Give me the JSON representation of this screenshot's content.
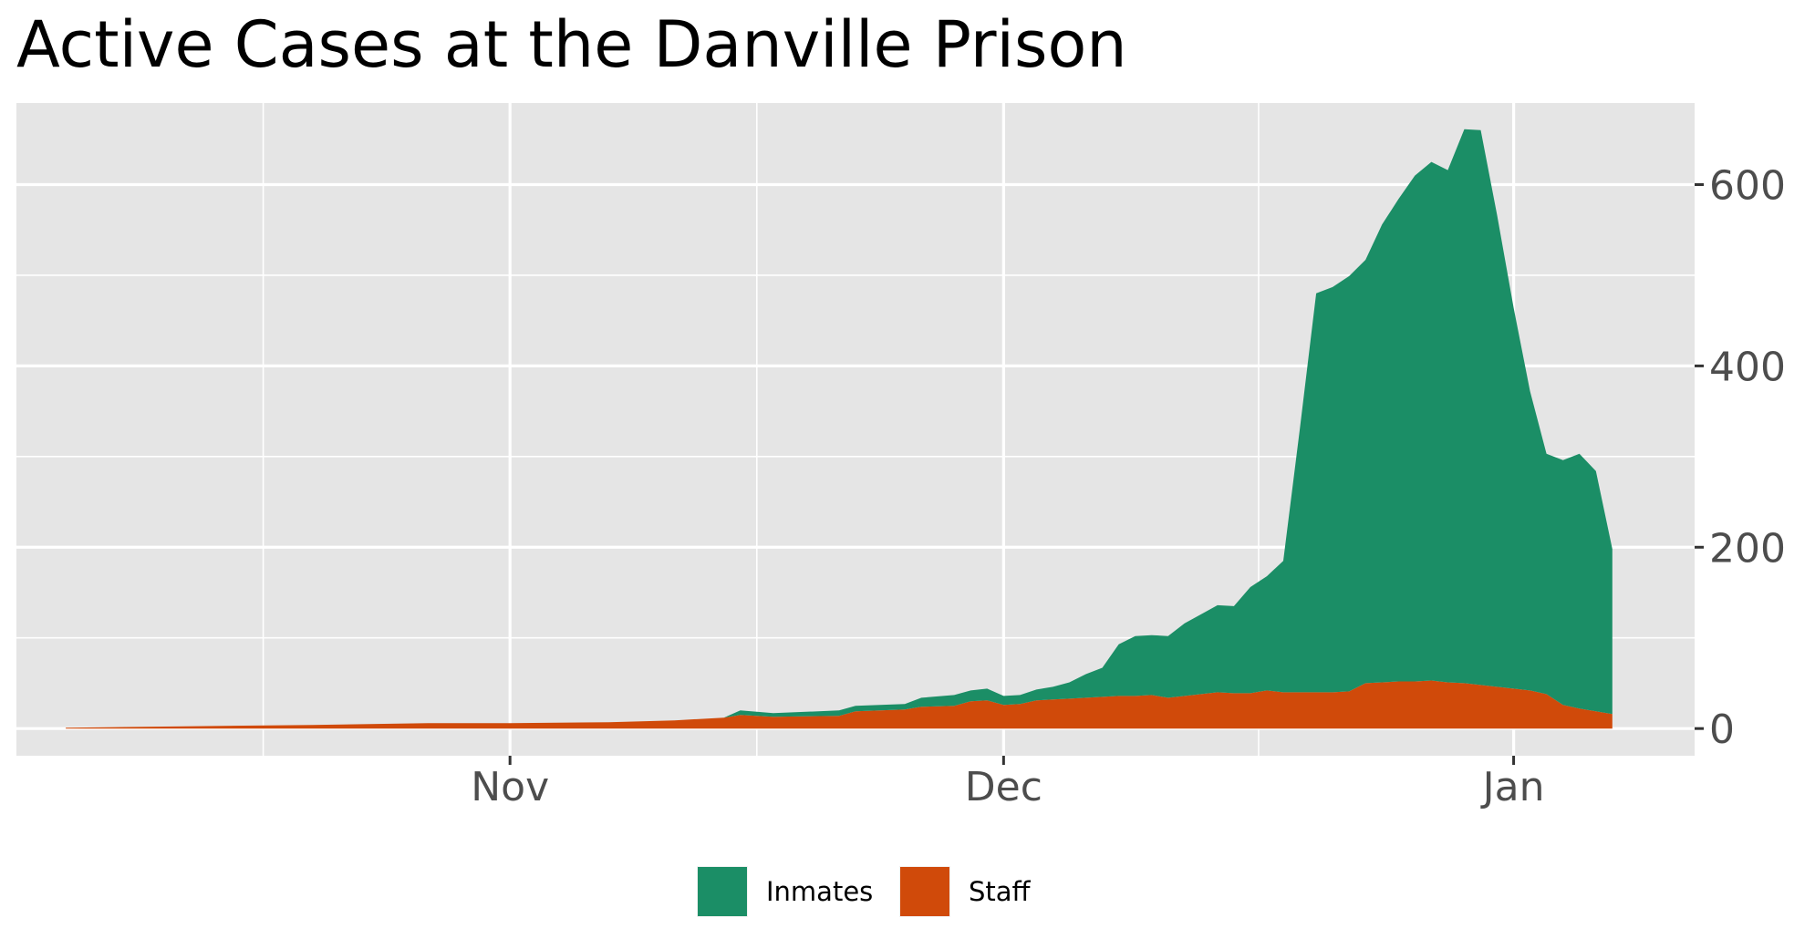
{
  "chart_data": {
    "type": "area",
    "stacked": true,
    "title": "Active Cases at the Danville Prison",
    "xlabel": "",
    "ylabel": "",
    "y_axis_position": "right",
    "x_tick_labels": [
      {
        "date": "2020-11-01",
        "label": "Nov"
      },
      {
        "date": "2020-12-01",
        "label": "Dec"
      },
      {
        "date": "2021-01-01",
        "label": "Jan"
      }
    ],
    "y_ticks": [
      0,
      200,
      400,
      600
    ],
    "ylim": [
      -30,
      690
    ],
    "xlim": [
      "2020-10-02",
      "2021-01-12"
    ],
    "grid": true,
    "legend_position": "bottom",
    "colors": {
      "panel_background": "#e5e5e5",
      "grid": "#ffffff",
      "axis_text": "#4d4d4d",
      "tick_mark": "#333333"
    },
    "series": [
      {
        "name": "Staff",
        "color": "#d04a0a",
        "points": [
          [
            "2020-10-05",
            1
          ],
          [
            "2020-10-20",
            4
          ],
          [
            "2020-10-27",
            6
          ],
          [
            "2020-11-01",
            6
          ],
          [
            "2020-11-07",
            7
          ],
          [
            "2020-11-11",
            9
          ],
          [
            "2020-11-14",
            12
          ],
          [
            "2020-11-15",
            15
          ],
          [
            "2020-11-17",
            13
          ],
          [
            "2020-11-21",
            14
          ],
          [
            "2020-11-22",
            19
          ],
          [
            "2020-11-25",
            21
          ],
          [
            "2020-11-26",
            24
          ],
          [
            "2020-11-28",
            25
          ],
          [
            "2020-11-29",
            30
          ],
          [
            "2020-11-30",
            31
          ],
          [
            "2020-12-01",
            26
          ],
          [
            "2020-12-02",
            27
          ],
          [
            "2020-12-03",
            31
          ],
          [
            "2020-12-04",
            32
          ],
          [
            "2020-12-05",
            33
          ],
          [
            "2020-12-06",
            34
          ],
          [
            "2020-12-07",
            35
          ],
          [
            "2020-12-08",
            36
          ],
          [
            "2020-12-09",
            36
          ],
          [
            "2020-12-10",
            37
          ],
          [
            "2020-12-11",
            34
          ],
          [
            "2020-12-12",
            36
          ],
          [
            "2020-12-13",
            38
          ],
          [
            "2020-12-14",
            40
          ],
          [
            "2020-12-15",
            39
          ],
          [
            "2020-12-16",
            39
          ],
          [
            "2020-12-17",
            42
          ],
          [
            "2020-12-18",
            40
          ],
          [
            "2020-12-19",
            40
          ],
          [
            "2020-12-20",
            40
          ],
          [
            "2020-12-21",
            40
          ],
          [
            "2020-12-22",
            41
          ],
          [
            "2020-12-23",
            50
          ],
          [
            "2020-12-24",
            51
          ],
          [
            "2020-12-25",
            52
          ],
          [
            "2020-12-26",
            52
          ],
          [
            "2020-12-27",
            53
          ],
          [
            "2020-12-28",
            51
          ],
          [
            "2020-12-29",
            50
          ],
          [
            "2020-12-30",
            48
          ],
          [
            "2020-12-31",
            46
          ],
          [
            "2021-01-01",
            44
          ],
          [
            "2021-01-02",
            42
          ],
          [
            "2021-01-03",
            38
          ],
          [
            "2021-01-04",
            26
          ],
          [
            "2021-01-05",
            22
          ],
          [
            "2021-01-06",
            19
          ],
          [
            "2021-01-07",
            16
          ]
        ]
      },
      {
        "name": "Inmates",
        "color": "#1b8e66",
        "points": [
          [
            "2020-10-05",
            0
          ],
          [
            "2020-11-14",
            0
          ],
          [
            "2020-11-15",
            5
          ],
          [
            "2020-11-17",
            4
          ],
          [
            "2020-11-21",
            6
          ],
          [
            "2020-11-22",
            6
          ],
          [
            "2020-11-25",
            6
          ],
          [
            "2020-11-26",
            10
          ],
          [
            "2020-11-28",
            12
          ],
          [
            "2020-11-29",
            12
          ],
          [
            "2020-11-30",
            13
          ],
          [
            "2020-12-01",
            10
          ],
          [
            "2020-12-02",
            10
          ],
          [
            "2020-12-03",
            12
          ],
          [
            "2020-12-04",
            14
          ],
          [
            "2020-12-05",
            18
          ],
          [
            "2020-12-06",
            26
          ],
          [
            "2020-12-07",
            32
          ],
          [
            "2020-12-08",
            57
          ],
          [
            "2020-12-09",
            66
          ],
          [
            "2020-12-10",
            66
          ],
          [
            "2020-12-11",
            68
          ],
          [
            "2020-12-12",
            80
          ],
          [
            "2020-12-13",
            88
          ],
          [
            "2020-12-14",
            96
          ],
          [
            "2020-12-15",
            96
          ],
          [
            "2020-12-16",
            117
          ],
          [
            "2020-12-17",
            126
          ],
          [
            "2020-12-18",
            145
          ],
          [
            "2020-12-19",
            290
          ],
          [
            "2020-12-20",
            440
          ],
          [
            "2020-12-21",
            447
          ],
          [
            "2020-12-22",
            458
          ],
          [
            "2020-12-23",
            467
          ],
          [
            "2020-12-24",
            505
          ],
          [
            "2020-12-25",
            532
          ],
          [
            "2020-12-26",
            558
          ],
          [
            "2020-12-27",
            572
          ],
          [
            "2020-12-28",
            565
          ],
          [
            "2020-12-29",
            611
          ],
          [
            "2020-12-30",
            612
          ],
          [
            "2020-12-31",
            520
          ],
          [
            "2021-01-01",
            420
          ],
          [
            "2021-01-02",
            330
          ],
          [
            "2021-01-03",
            265
          ],
          [
            "2021-01-04",
            270
          ],
          [
            "2021-01-05",
            281
          ],
          [
            "2021-01-06",
            265
          ],
          [
            "2021-01-07",
            182
          ]
        ]
      }
    ]
  },
  "legend": {
    "items": [
      {
        "label": "Inmates",
        "color": "#1b8e66"
      },
      {
        "label": "Staff",
        "color": "#d04a0a"
      }
    ]
  }
}
